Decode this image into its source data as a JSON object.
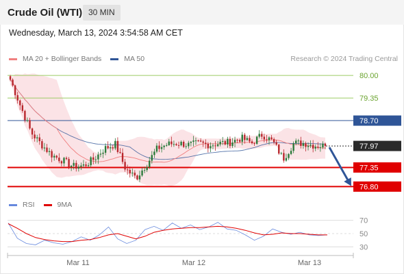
{
  "header": {
    "title": "Crude Oil (WTI)",
    "timeframe": "30 MIN",
    "datetime": "Wednesday, March 13, 2024 3:54:58 AM CET"
  },
  "legend": {
    "ma20": "MA 20 + Bollinger Bands",
    "ma50": "MA 50",
    "copyright": "Research © 2024 Trading Central"
  },
  "oscillator_legend": {
    "rsi": "RSI",
    "ma9": "9MA"
  },
  "colors": {
    "ma20": "#f07f7f",
    "ma50": "#2f5597",
    "band": "#fadadd",
    "candle_up": "#2a7a3a",
    "candle_down": "#b8262c",
    "resistance_green": "#9ccc65",
    "resistance_label": "#6aa32e",
    "pivot_blue": "#2f5597",
    "support_red": "#e00000",
    "current_price": "#2b2b2b",
    "arrow": "#2f5597",
    "rsi": "#6688dd",
    "rsi_ma": "#e00000"
  },
  "chart_data": [
    {
      "type": "candlestick",
      "title": "Crude Oil (WTI)",
      "timeframe": "30 MIN",
      "ylim": [
        76.65,
        80.2
      ],
      "x_tick_labels": [
        "Mar 11",
        "Mar 12",
        "Mar 13"
      ],
      "indicators": [
        "MA 20 + Bollinger Bands",
        "MA 50"
      ],
      "levels": [
        {
          "label": "80.00",
          "value": 80.0,
          "kind": "resistance"
        },
        {
          "label": "79.35",
          "value": 79.35,
          "kind": "resistance"
        },
        {
          "label": "78.70",
          "value": 78.7,
          "kind": "pivot"
        },
        {
          "label": "77.97",
          "value": 77.97,
          "kind": "current"
        },
        {
          "label": "77.35",
          "value": 77.35,
          "kind": "support"
        },
        {
          "label": "76.80",
          "value": 76.8,
          "kind": "support"
        }
      ],
      "projection": {
        "from": 77.97,
        "to": 76.8,
        "direction": "down"
      },
      "close_path": [
        79.88,
        79.1,
        78.35,
        78.0,
        77.7,
        77.55,
        77.38,
        77.4,
        77.6,
        77.9,
        78.02,
        77.3,
        77.05,
        77.45,
        77.9,
        78.02,
        78.05,
        78.0,
        78.05,
        78.0,
        78.05,
        78.08,
        78.2,
        78.05,
        78.3,
        78.1,
        77.6,
        78.05,
        78.05,
        77.98,
        77.97
      ]
    },
    {
      "type": "line",
      "title": "RSI",
      "series": [
        {
          "name": "RSI",
          "values": [
            66,
            43,
            35,
            33,
            40,
            36,
            34,
            38,
            45,
            40,
            48,
            60,
            42,
            35,
            40,
            56,
            61,
            55,
            66,
            58,
            63,
            56,
            60,
            67,
            57,
            55,
            48,
            40,
            46,
            57,
            52,
            49,
            52,
            48,
            47,
            48
          ]
        },
        {
          "name": "9MA",
          "values": [
            65,
            58,
            50,
            44,
            41,
            39,
            38,
            38,
            40,
            41,
            44,
            48,
            50,
            46,
            42,
            46,
            52,
            55,
            57,
            58,
            59,
            59,
            60,
            61,
            60,
            58,
            55,
            51,
            48,
            49,
            51,
            50,
            50,
            49,
            48,
            48
          ]
        }
      ],
      "ylim": [
        20,
        80
      ],
      "y_ticks": [
        30,
        50,
        70
      ],
      "x_tick_labels": [
        "Mar 11",
        "Mar 12",
        "Mar 13"
      ]
    }
  ]
}
